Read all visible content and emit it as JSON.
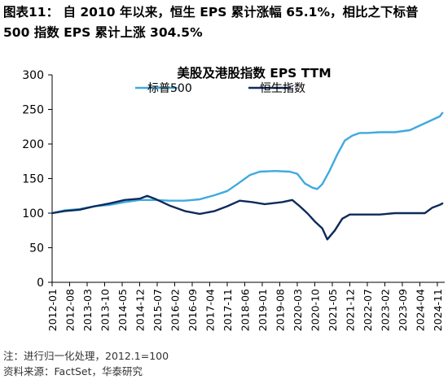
{
  "header": {
    "line1": "图表11：  自 2010 年以来，恒生 EPS 累计涨幅 65.1%，相比之下标普",
    "line2": "500 指数 EPS 累计上涨 304.5%"
  },
  "footer": {
    "note": "注：进行归一化处理，2012.1=100",
    "source": "资料来源：FactSet，华泰研究"
  },
  "chart_data": {
    "type": "line",
    "title": "美股及港股指数 EPS TTM",
    "xlabel": "",
    "ylabel": "",
    "ylim": [
      0,
      300
    ],
    "yticks": [
      0,
      50,
      100,
      150,
      200,
      250,
      300
    ],
    "xlim": [
      "2012-01",
      "2024-12"
    ],
    "xtick_labels": [
      "2012-01",
      "2012-08",
      "2013-03",
      "2013-10",
      "2014-05",
      "2014-12",
      "2015-07",
      "2016-02",
      "2016-09",
      "2017-04",
      "2017-11",
      "2018-06",
      "2019-01",
      "2019-08",
      "2020-03",
      "2020-10",
      "2021-05",
      "2021-12",
      "2022-07",
      "2023-02",
      "2023-09",
      "2024-04",
      "2024-11"
    ],
    "grid": false,
    "legend_position": "top",
    "series": [
      {
        "name": "标普500",
        "color": "#3fa9e0",
        "points": [
          [
            "2012-01",
            100
          ],
          [
            "2012-06",
            104
          ],
          [
            "2012-12",
            106
          ],
          [
            "2013-06",
            110
          ],
          [
            "2013-12",
            112
          ],
          [
            "2014-06",
            116
          ],
          [
            "2014-12",
            119
          ],
          [
            "2015-06",
            119
          ],
          [
            "2015-12",
            118
          ],
          [
            "2016-06",
            118
          ],
          [
            "2016-12",
            120
          ],
          [
            "2017-06",
            126
          ],
          [
            "2017-11",
            132
          ],
          [
            "2018-03",
            142
          ],
          [
            "2018-08",
            155
          ],
          [
            "2018-12",
            160
          ],
          [
            "2019-06",
            161
          ],
          [
            "2019-12",
            160
          ],
          [
            "2020-03",
            157
          ],
          [
            "2020-06",
            143
          ],
          [
            "2020-09",
            137
          ],
          [
            "2020-11",
            135
          ],
          [
            "2021-01",
            142
          ],
          [
            "2021-04",
            162
          ],
          [
            "2021-07",
            185
          ],
          [
            "2021-10",
            205
          ],
          [
            "2022-01",
            212
          ],
          [
            "2022-04",
            216
          ],
          [
            "2022-07",
            216
          ],
          [
            "2022-12",
            217
          ],
          [
            "2023-06",
            217
          ],
          [
            "2023-12",
            220
          ],
          [
            "2024-06",
            230
          ],
          [
            "2024-12",
            240
          ],
          [
            "2025-01",
            245
          ]
        ]
      },
      {
        "name": "恒生指数",
        "color": "#0d2a5c",
        "points": [
          [
            "2012-01",
            100
          ],
          [
            "2012-06",
            103
          ],
          [
            "2012-12",
            105
          ],
          [
            "2013-06",
            110
          ],
          [
            "2013-12",
            114
          ],
          [
            "2014-06",
            119
          ],
          [
            "2014-12",
            121
          ],
          [
            "2015-03",
            125
          ],
          [
            "2015-06",
            121
          ],
          [
            "2015-12",
            111
          ],
          [
            "2016-06",
            103
          ],
          [
            "2016-12",
            99
          ],
          [
            "2017-06",
            103
          ],
          [
            "2017-11",
            110
          ],
          [
            "2018-04",
            118
          ],
          [
            "2018-09",
            116
          ],
          [
            "2019-02",
            113
          ],
          [
            "2019-09",
            116
          ],
          [
            "2020-01",
            119
          ],
          [
            "2020-04",
            110
          ],
          [
            "2020-07",
            100
          ],
          [
            "2020-10",
            88
          ],
          [
            "2021-01",
            78
          ],
          [
            "2021-03",
            62
          ],
          [
            "2021-06",
            75
          ],
          [
            "2021-09",
            92
          ],
          [
            "2021-12",
            98
          ],
          [
            "2022-06",
            98
          ],
          [
            "2022-12",
            98
          ],
          [
            "2023-06",
            100
          ],
          [
            "2023-12",
            100
          ],
          [
            "2024-06",
            100
          ],
          [
            "2024-09",
            108
          ],
          [
            "2024-12",
            112
          ],
          [
            "2025-01",
            114
          ]
        ]
      }
    ]
  }
}
